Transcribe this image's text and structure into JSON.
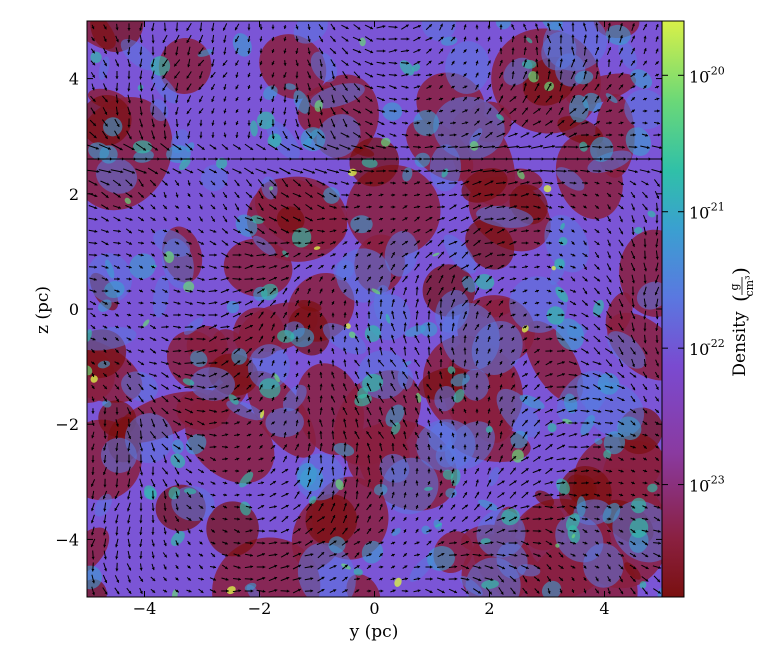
{
  "chart_data": {
    "type": "heatmap",
    "title": "",
    "xlabel": "y  (pc)",
    "ylabel": "z  (pc)",
    "xlim": [
      -5,
      5
    ],
    "ylim": [
      -5,
      5
    ],
    "xticks": [
      {
        "value": -4,
        "label": "−4"
      },
      {
        "value": -2,
        "label": "−2"
      },
      {
        "value": 0,
        "label": "0"
      },
      {
        "value": 2,
        "label": "2"
      },
      {
        "value": 4,
        "label": "4"
      }
    ],
    "yticks": [
      {
        "value": -4,
        "label": "−4"
      },
      {
        "value": -2,
        "label": "−2"
      },
      {
        "value": 0,
        "label": "0"
      },
      {
        "value": 2,
        "label": "2"
      },
      {
        "value": 4,
        "label": "4"
      }
    ],
    "overlay": "velocity vector quiver (black arrows)",
    "colorbar": {
      "label": "Density",
      "unit_numerator": "g",
      "unit_denominator": "cm³",
      "scale": "log",
      "range": [
        1.5e-24,
        2.5e-20
      ],
      "ticks": [
        {
          "value": 1e-20,
          "base": "10",
          "exp": "-20"
        },
        {
          "value": 1e-21,
          "base": "10",
          "exp": "-21"
        },
        {
          "value": 1e-22,
          "base": "10",
          "exp": "-22"
        },
        {
          "value": 1e-23,
          "base": "10",
          "exp": "-23"
        }
      ],
      "colormap": [
        "#7a1010",
        "#8a2040",
        "#8a3aa0",
        "#7a4ad0",
        "#5a78e0",
        "#3aa0d0",
        "#30c0a8",
        "#6ad878",
        "#d8f048"
      ]
    }
  }
}
